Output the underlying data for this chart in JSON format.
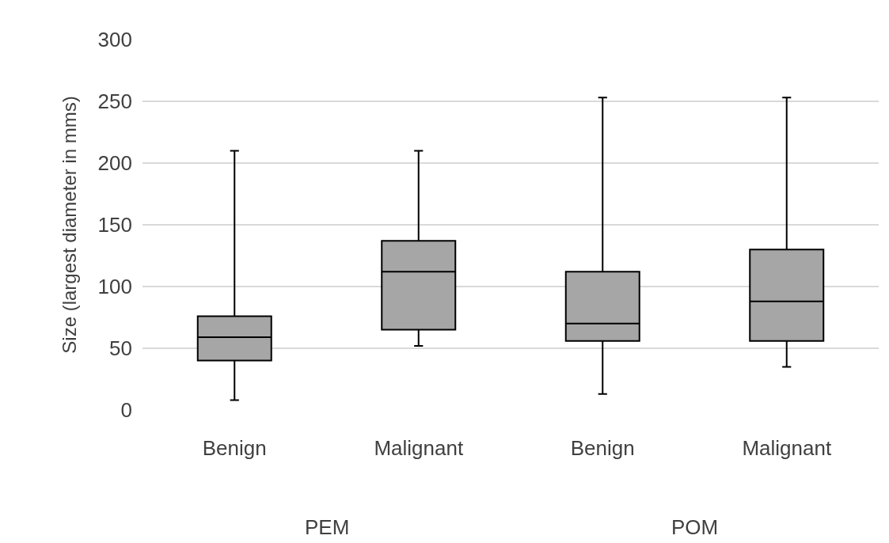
{
  "chart_data": {
    "type": "box",
    "categories": [
      "Benign",
      "Malignant",
      "Benign",
      "Malignant"
    ],
    "boxes": [
      {
        "low": 8,
        "q1": 40,
        "median": 59,
        "q3": 76,
        "high": 210
      },
      {
        "low": 52,
        "q1": 65,
        "median": 112,
        "q3": 137,
        "high": 210
      },
      {
        "low": 13,
        "q1": 56,
        "median": 70,
        "q3": 112,
        "high": 253
      },
      {
        "low": 35,
        "q1": 56,
        "median": 88,
        "q3": 130,
        "high": 253
      }
    ],
    "color": "#a6a6a6",
    "ylabel": "Size (largest diameter in mms)",
    "ylim": [
      0,
      300
    ],
    "yticks": [
      0,
      50,
      100,
      150,
      200,
      250,
      300
    ],
    "grid": "y",
    "annotations": [
      "PEM",
      "POM"
    ]
  }
}
